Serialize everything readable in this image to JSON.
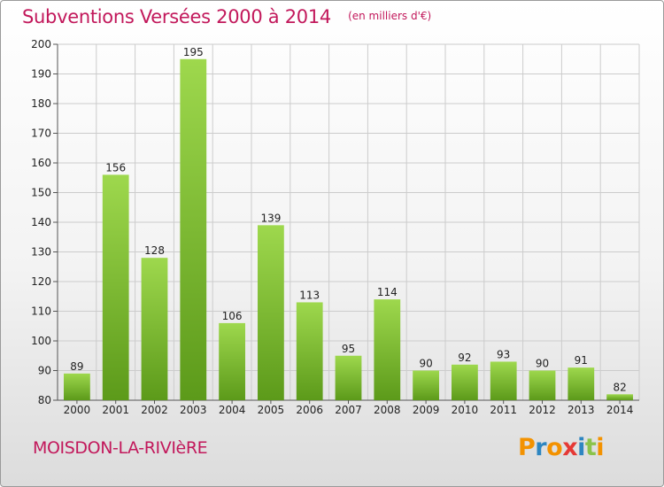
{
  "title": "Subventions Versées 2000 à 2014",
  "subtitle": "(en milliers d'€)",
  "commune": "MOISDON-LA-RIVIèRE",
  "brand": {
    "text": "Proxiti",
    "letters": [
      "P",
      "r",
      "o",
      "x",
      "i",
      "t",
      "i"
    ],
    "letter_colors": [
      "#f39200",
      "#2e86c1",
      "#f39200",
      "#e53935",
      "#2e86c1",
      "#8bc34a",
      "#f39200"
    ]
  },
  "colors": {
    "title": "#c2185b",
    "bar_top": "#9ed84d",
    "bar_bottom": "#5c9a1a",
    "grid": "#cccccc"
  },
  "chart_data": {
    "type": "bar",
    "title": "Subventions Versées 2000 à 2014",
    "subtitle": "(en milliers d'€)",
    "categories": [
      "2000",
      "2001",
      "2002",
      "2003",
      "2004",
      "2005",
      "2006",
      "2007",
      "2008",
      "2009",
      "2010",
      "2011",
      "2012",
      "2013",
      "2014"
    ],
    "values": [
      89,
      156,
      128,
      195,
      106,
      139,
      113,
      95,
      114,
      90,
      92,
      93,
      90,
      91,
      82
    ],
    "ylim": [
      80,
      200
    ],
    "yticks": [
      80,
      90,
      100,
      110,
      120,
      130,
      140,
      150,
      160,
      170,
      180,
      190,
      200
    ],
    "grid": true,
    "xlabel": "",
    "ylabel": ""
  }
}
